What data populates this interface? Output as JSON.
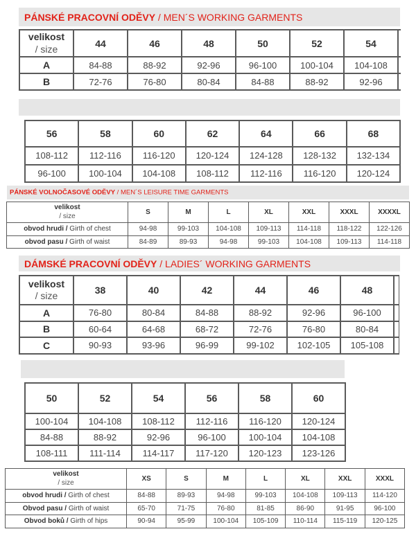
{
  "sections": [
    {
      "title_cz": "PÁNSKÉ PRACOVNÍ ODĚVY",
      "title_en": " / MEN´S WORKING GARMENTS"
    },
    {
      "title_cz": "PÁNSKÉ VOLNOČASOVÉ ODĚVY",
      "title_en": " / MEN´S LEISURE TIME GARMENTS"
    },
    {
      "title_cz": "DÁMSKÉ PRACOVNÍ ODĚVY",
      "title_en": " / LADIES´ WORKING GARMENTS"
    }
  ],
  "size_label": {
    "cz": "velikost",
    "en": "/ size"
  },
  "tables": [
    {
      "header": [
        "44",
        "46",
        "48",
        "50",
        "52",
        "54"
      ],
      "rows": [
        {
          "label_cz": "A",
          "label_en": "",
          "cells": [
            "84-88",
            "88-92",
            "92-96",
            "96-100",
            "100-104",
            "104-108"
          ]
        },
        {
          "label_cz": "B",
          "label_en": "",
          "cells": [
            "72-76",
            "76-80",
            "80-84",
            "84-88",
            "88-92",
            "92-96"
          ]
        }
      ]
    },
    {
      "header": [
        "56",
        "58",
        "60",
        "62",
        "64",
        "66",
        "68"
      ],
      "rows": [
        {
          "cells": [
            "108-112",
            "112-116",
            "116-120",
            "120-124",
            "124-128",
            "128-132",
            "132-134"
          ]
        },
        {
          "cells": [
            "96-100",
            "100-104",
            "104-108",
            "108-112",
            "112-116",
            "116-120",
            "120-124"
          ]
        }
      ]
    },
    {
      "header": [
        "S",
        "M",
        "L",
        "XL",
        "XXL",
        "XXXL",
        "XXXXL"
      ],
      "rows": [
        {
          "label_cz": "obvod hrudi  /",
          "label_en": " Girth of chest",
          "cells": [
            "94-98",
            "99-103",
            "104-108",
            "109-113",
            "114-118",
            "118-122",
            "122-126"
          ]
        },
        {
          "label_cz": "obvod pasu /",
          "label_en": " Girth of waist",
          "cells": [
            "84-89",
            "89-93",
            "94-98",
            "99-103",
            "104-108",
            "109-113",
            "114-118"
          ]
        }
      ]
    },
    {
      "header": [
        "38",
        "40",
        "42",
        "44",
        "46",
        "48"
      ],
      "rows": [
        {
          "label_cz": "A",
          "label_en": "",
          "cells": [
            "76-80",
            "80-84",
            "84-88",
            "88-92",
            "92-96",
            "96-100"
          ]
        },
        {
          "label_cz": "B",
          "label_en": "",
          "cells": [
            "60-64",
            "64-68",
            "68-72",
            "72-76",
            "76-80",
            "80-84"
          ]
        },
        {
          "label_cz": "C",
          "label_en": "",
          "cells": [
            "90-93",
            "93-96",
            "96-99",
            "99-102",
            "102-105",
            "105-108"
          ]
        }
      ]
    },
    {
      "header": [
        "50",
        "52",
        "54",
        "56",
        "58",
        "60"
      ],
      "rows": [
        {
          "cells": [
            "100-104",
            "104-108",
            "108-112",
            "112-116",
            "116-120",
            "120-124"
          ]
        },
        {
          "cells": [
            "84-88",
            "88-92",
            "92-96",
            "96-100",
            "100-104",
            "104-108"
          ]
        },
        {
          "cells": [
            "108-111",
            "111-114",
            "114-117",
            "117-120",
            "120-123",
            "123-126"
          ]
        }
      ]
    },
    {
      "header": [
        "XS",
        "S",
        "M",
        "L",
        "XL",
        "XXL",
        "XXXL"
      ],
      "rows": [
        {
          "label_cz": "obvod hrudi /",
          "label_en": " Girth of chest",
          "cells": [
            "84-88",
            "89-93",
            "94-98",
            "99-103",
            "104-108",
            "109-113",
            "114-120"
          ]
        },
        {
          "label_cz": "Obvod pasu /",
          "label_en": " Girth of waist",
          "cells": [
            "65-70",
            "71-75",
            "76-80",
            "81-85",
            "86-90",
            "91-95",
            "96-100"
          ]
        },
        {
          "label_cz": "Obvod boků /",
          "label_en": " Girth of hips",
          "cells": [
            "90-94",
            "95-99",
            "100-104",
            "105-109",
            "110-114",
            "115-119",
            "120-125"
          ]
        }
      ]
    }
  ],
  "colors": {
    "accent": "#e2231a",
    "band": "#e6e6e6",
    "border": "#5a5a5a"
  }
}
